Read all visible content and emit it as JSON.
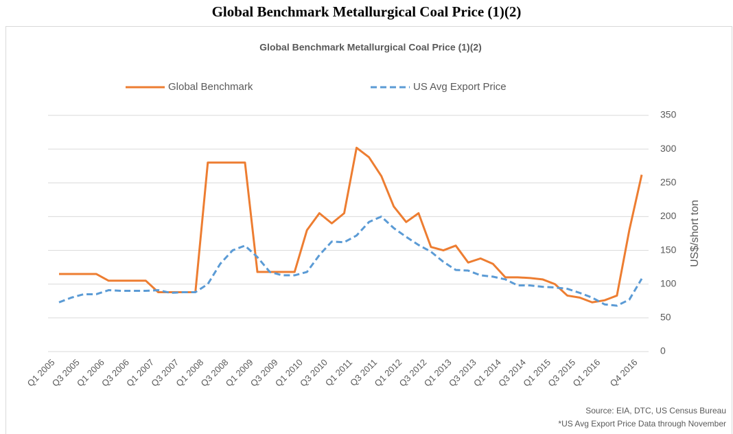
{
  "page_title": "Global Benchmark Metallurgical Coal Price (1)(2)",
  "chart_data": {
    "type": "line",
    "title": "Global Benchmark Metallurgical Coal Price (1)(2)",
    "categories": [
      "Q1 2005",
      null,
      "Q3 2005",
      null,
      "Q1 2006",
      null,
      "Q3 2006",
      null,
      "Q1 2007",
      null,
      "Q3 2007",
      null,
      "Q1 2008",
      null,
      "Q3 2008",
      null,
      "Q1 2009",
      null,
      "Q3 2009",
      null,
      "Q1 2010",
      null,
      "Q3 2010",
      null,
      "Q1 2011",
      null,
      "Q3 2011",
      null,
      "Q1 2012",
      null,
      "Q3 2012",
      null,
      "Q1 2013",
      null,
      "Q3 2013",
      null,
      "Q1 2014",
      null,
      "Q3 2014",
      null,
      "Q1 2015",
      null,
      "Q3 2015",
      null,
      "Q1 2016",
      null,
      null,
      "Q4 2016"
    ],
    "series": [
      {
        "name": "Global Benchmark",
        "color": "#ed7d31",
        "dash": false,
        "values": [
          115,
          115,
          115,
          115,
          105,
          105,
          105,
          105,
          88,
          88,
          88,
          88,
          280,
          280,
          280,
          280,
          118,
          118,
          118,
          118,
          180,
          205,
          190,
          205,
          302,
          288,
          260,
          215,
          192,
          205,
          155,
          150,
          157,
          132,
          138,
          130,
          110,
          110,
          109,
          107,
          100,
          83,
          80,
          73,
          76,
          83,
          180,
          262
        ]
      },
      {
        "name": "US Avg Export Price",
        "color": "#5b9bd5",
        "dash": true,
        "values": [
          73,
          80,
          85,
          85,
          91,
          90,
          90,
          90,
          91,
          87,
          88,
          88,
          100,
          130,
          150,
          157,
          140,
          118,
          113,
          113,
          118,
          143,
          163,
          162,
          172,
          192,
          200,
          183,
          170,
          158,
          148,
          133,
          121,
          120,
          113,
          111,
          107,
          98,
          98,
          96,
          95,
          93,
          87,
          80,
          70,
          68,
          77,
          108
        ]
      }
    ],
    "ylabel": "US$/short ton",
    "ylim": [
      0,
      350
    ],
    "yticks": [
      0,
      50,
      100,
      150,
      200,
      250,
      300,
      350
    ],
    "grid": true,
    "legend": "top",
    "notes": [
      "Source: EIA, DTC, US Census Bureau",
      "*US Avg Export Price Data through November"
    ]
  }
}
